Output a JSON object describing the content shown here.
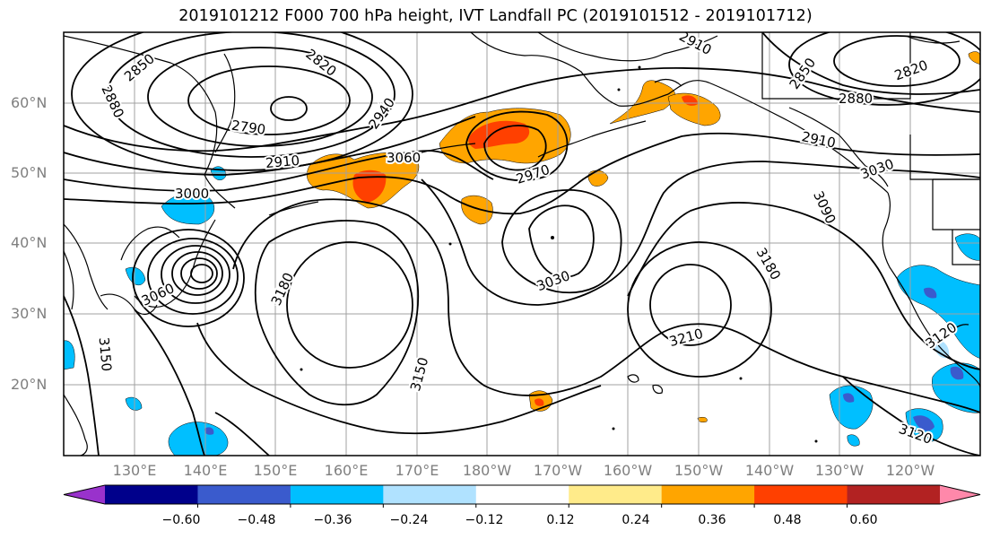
{
  "title": "2019101212 F000 700 hPa height, IVT Landfall PC (2019101512 - 2019101712)",
  "lat_labels": [
    "60°N",
    "50°N",
    "40°N",
    "30°N",
    "20°N"
  ],
  "lon_labels": [
    "130°E",
    "140°E",
    "150°E",
    "160°E",
    "170°E",
    "180°W",
    "170°W",
    "160°W",
    "150°W",
    "140°W",
    "130°W",
    "120°W"
  ],
  "colorbar": {
    "ticks": [
      "−0.60",
      "−0.48",
      "−0.36",
      "−0.24",
      "−0.12",
      "0.12",
      "0.24",
      "0.36",
      "0.48",
      "0.60"
    ],
    "colors": [
      "#9932cc",
      "#00008b",
      "#3a5bcd",
      "#00bfff",
      "#b0e2ff",
      "#ffffff",
      "#ffeb8a",
      "#ffa500",
      "#ff4000",
      "#b22222",
      "#ff88aa"
    ]
  },
  "contour_labels": [
    "2850",
    "2820",
    "2880",
    "2790",
    "2940",
    "2910",
    "3000",
    "3060",
    "2970",
    "2910",
    "2850",
    "2820",
    "2880",
    "2910",
    "3030",
    "3090",
    "3180",
    "3060",
    "3030",
    "3180",
    "3210",
    "3150",
    "3150",
    "3120",
    "3120"
  ],
  "colors": {
    "contour": "#000000",
    "coast": "#000000",
    "grid": "#a0a0a0"
  }
}
